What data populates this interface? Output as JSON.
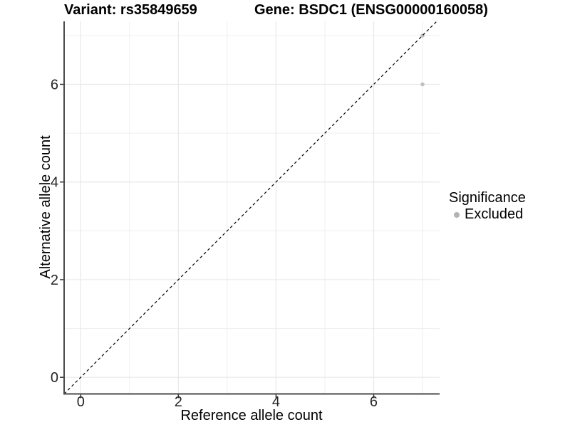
{
  "chart_data": {
    "type": "scatter",
    "titles": {
      "left": "Variant: rs35849659",
      "right": "Gene: BSDC1 (ENSG00000160058)"
    },
    "xlabel": "Reference allele count",
    "ylabel": "Alternative allele count",
    "xlim": [
      -0.34,
      7.35
    ],
    "ylim": [
      -0.34,
      7.29
    ],
    "x_ticks": [
      0,
      2,
      4,
      6
    ],
    "y_ticks": [
      0,
      2,
      4,
      6
    ],
    "x_minor": [
      1,
      3,
      5,
      7
    ],
    "y_minor": [
      1,
      3,
      5,
      7
    ],
    "grid": true,
    "points": [
      {
        "x": 7,
        "y": 7,
        "significance": "Excluded"
      },
      {
        "x": 7,
        "y": 6,
        "significance": "Excluded"
      }
    ],
    "identity_line": {
      "slope": 1,
      "intercept": 0,
      "style": "dashed"
    },
    "legend": {
      "title": "Significance",
      "position": "right",
      "items": [
        {
          "label": "Excluded",
          "color": "#bebebe"
        }
      ]
    },
    "colors": {
      "point": "#c0c0c0",
      "legend_key": "#b3b3b3",
      "grid_major": "#e8e8e8",
      "grid_minor": "#efefef",
      "axis_line": "#4a4a4a",
      "tick_mark": "#333333",
      "tick_label": "#262626",
      "identity_line": "#000000",
      "text": "#000000"
    }
  }
}
